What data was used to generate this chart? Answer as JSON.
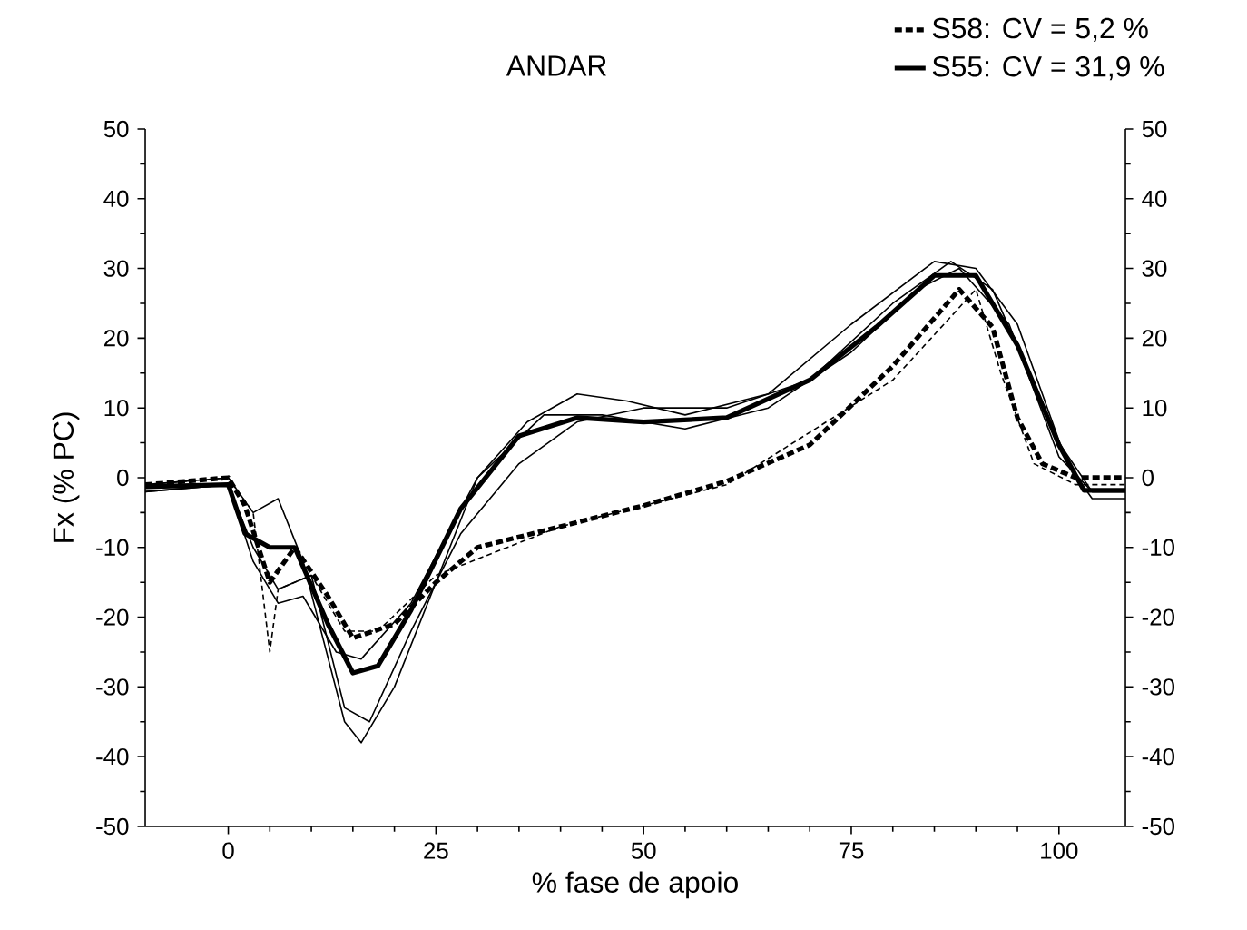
{
  "chart_data": {
    "type": "line",
    "title": "ANDAR",
    "xlabel": "% fase de apoio",
    "ylabel": "Fx (% PC)",
    "xlim": [
      -10,
      108
    ],
    "ylim": [
      -50,
      50
    ],
    "y2lim": [
      -50,
      50
    ],
    "xticks": [
      0,
      25,
      50,
      75,
      100
    ],
    "yticks": [
      -50,
      -40,
      -30,
      -20,
      -10,
      0,
      10,
      20,
      30,
      40,
      50
    ],
    "y2ticks": [
      -50,
      -40,
      -30,
      -20,
      -10,
      0,
      10,
      20,
      30,
      40,
      50
    ],
    "legend": "top right",
    "marker": "none",
    "series": [
      {
        "name": "S58: CV = 5,2 %",
        "color": "#000000",
        "line_style": "dashed",
        "x": [
          -10,
          0,
          2,
          5,
          8,
          12,
          15,
          20,
          25,
          30,
          40,
          50,
          60,
          70,
          80,
          88,
          92,
          95,
          98,
          102,
          108
        ],
        "values": [
          -1,
          0,
          -4,
          -15,
          -10,
          -17,
          -23,
          -21,
          -15,
          -10,
          -7,
          -4,
          -0.5,
          4.7,
          16,
          27,
          21.6,
          8.6,
          2,
          0,
          0
        ]
      },
      {
        "name": "S55: CV = 31,9 %",
        "color": "#000000",
        "line_style": "solid",
        "x": [
          -10,
          0,
          2,
          5,
          8,
          12,
          15,
          18,
          22,
          28,
          35,
          42,
          50,
          60,
          70,
          78,
          85,
          90,
          95,
          100,
          103,
          108
        ],
        "values": [
          -1.3,
          -1,
          -8,
          -10,
          -10,
          -21,
          -28,
          -27,
          -19,
          -4.4,
          6,
          8.6,
          8,
          8.6,
          14,
          21.6,
          29,
          29,
          19,
          4.7,
          -1.8,
          -1.8
        ]
      },
      {
        "color": "#000000",
        "line_style": "dashed",
        "x": [
          -10,
          0,
          3,
          5,
          6,
          10,
          14,
          18,
          25,
          40,
          60,
          80,
          90,
          93,
          97,
          102,
          108
        ],
        "values": [
          -1,
          0,
          -5,
          -25,
          -16,
          -14,
          -22,
          -22,
          -14,
          -7,
          -1,
          14,
          27,
          15,
          2,
          -1,
          -1
        ]
      },
      {
        "color": "#000000",
        "line_style": "solid",
        "x": [
          -10,
          0,
          3,
          6,
          9,
          14,
          16,
          20,
          25,
          30,
          36,
          42,
          48,
          55,
          65,
          75,
          85,
          90,
          95,
          101,
          104,
          108
        ],
        "values": [
          -1,
          0,
          -5,
          -3,
          -12,
          -35,
          -38,
          -30,
          -15,
          0,
          8,
          12,
          11,
          9,
          12,
          22,
          31,
          30,
          22,
          2,
          -3,
          -3
        ]
      },
      {
        "color": "#000000",
        "line_style": "solid",
        "x": [
          -10,
          0,
          3,
          6,
          10,
          14,
          17,
          22,
          28,
          35,
          42,
          50,
          60,
          70,
          80,
          87,
          92,
          100,
          104,
          108
        ],
        "values": [
          -2,
          -1,
          -10,
          -16,
          -14,
          -33,
          -35,
          -22,
          -8,
          2,
          8,
          10,
          10,
          14,
          25,
          31,
          27,
          5,
          -2,
          -2
        ]
      },
      {
        "color": "#000000",
        "line_style": "solid",
        "x": [
          -10,
          0,
          3,
          6,
          9,
          13,
          16,
          22,
          30,
          38,
          45,
          55,
          65,
          75,
          83,
          88,
          94,
          100,
          104,
          108
        ],
        "values": [
          -2,
          -1,
          -12,
          -18,
          -17,
          -25,
          -26,
          -18,
          0,
          9,
          9,
          7,
          10,
          18,
          27,
          30,
          22,
          3,
          -2,
          -2
        ]
      }
    ]
  }
}
